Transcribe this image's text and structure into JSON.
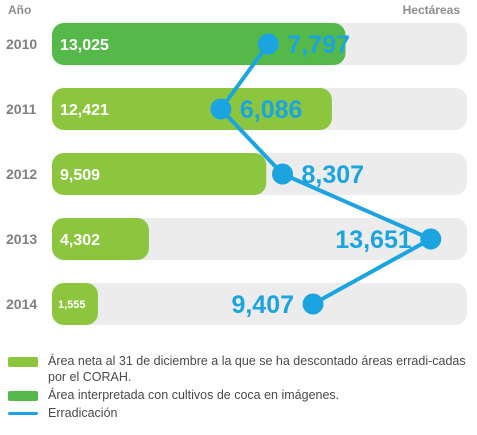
{
  "colors": {
    "track": "#ececec",
    "net_area": "#8cc63f",
    "interpreted_area": "#54b948",
    "eradication": "#1ca4e0",
    "year_text": "#7f7f7f",
    "value_text": "#ffffff"
  },
  "chart_data": {
    "type": "bar",
    "orientation": "horizontal",
    "header_left": "Año",
    "header_right": "Hectáreas",
    "categories": [
      "2010",
      "2011",
      "2012",
      "2013",
      "2014"
    ],
    "bar_labels": [
      "13,025",
      "12,421",
      "9,509",
      "4,302",
      "1,555"
    ],
    "bar_values": [
      13025,
      12421,
      9509,
      4302,
      1555
    ],
    "bar_series_color": [
      "interpreted_area",
      "net_area",
      "net_area",
      "net_area",
      "net_area"
    ],
    "line_series": {
      "name": "Erradicación",
      "labels": [
        "7,797",
        "6,086",
        "8,307",
        "13,651",
        "9,407"
      ],
      "values": [
        7797,
        6086,
        8307,
        13651,
        9407
      ]
    },
    "xlim": [
      0,
      14200
    ],
    "grid": false,
    "legend_position": "bottom"
  },
  "legend": {
    "items": [
      {
        "label": "Área neta al 31 de diciembre a la que se ha descontado áreas erradi-cadas por el CORAH.",
        "color": "#8cc63f",
        "shape": "box"
      },
      {
        "label": "Área interpretada con cultivos de coca en imágenes.",
        "color": "#54b948",
        "shape": "box"
      },
      {
        "label": "Erradicación",
        "color": "#1ca4e0",
        "shape": "line"
      }
    ]
  }
}
